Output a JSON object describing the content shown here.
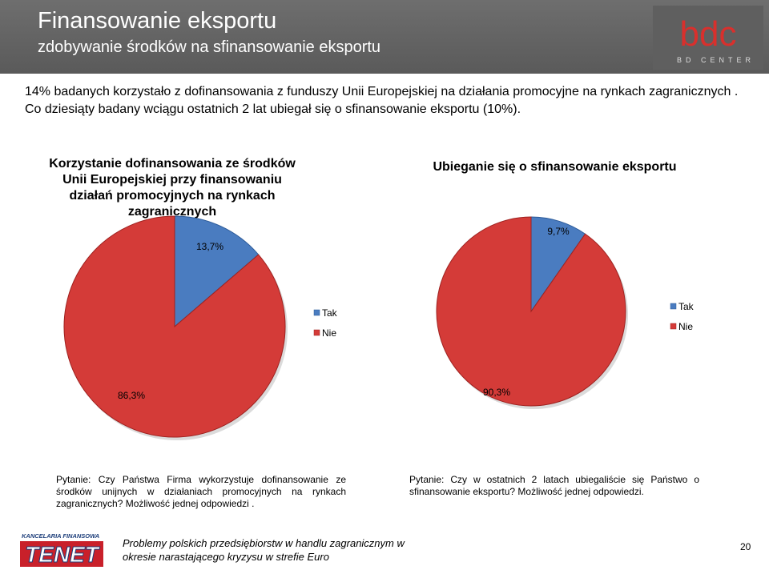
{
  "header": {
    "title": "Finansowanie eksportu",
    "subtitle": "zdobywanie środków na sfinansowanie eksportu",
    "logo_text": "BD CENTER",
    "logo_mark": "bdc"
  },
  "intro": {
    "line1": "14% badanych korzystało z dofinansowania z funduszy Unii Europejskiej na działania promocyjne na rynkach zagranicznych .",
    "line2": "Co dziesiąty badany wciągu ostatnich 2 lat  ubiegał się o sfinansowanie eksportu (10%)."
  },
  "colors": {
    "tak": "#4a7cc0",
    "nie": "#d43b38",
    "header_bg": "#636363"
  },
  "chart_data": [
    {
      "type": "pie",
      "title": "Korzystanie dofinansowania ze środków Unii Europejskiej przy finansowaniu działań promocyjnych na rynkach zagranicznych",
      "categories": [
        "Tak",
        "Nie"
      ],
      "values": [
        13.7,
        86.3
      ],
      "value_labels": [
        "13,7%",
        "86,3%"
      ],
      "legend": "right"
    },
    {
      "type": "pie",
      "title": "Ubieganie się o sfinansowanie eksportu",
      "categories": [
        "Tak",
        "Nie"
      ],
      "values": [
        9.7,
        90.3
      ],
      "value_labels": [
        "9,7%",
        "90,3%"
      ],
      "legend": "right"
    }
  ],
  "questions": {
    "q1": "Pytanie: Czy Państwa Firma wykorzystuje dofinansowanie ze środków unijnych w działaniach promocyjnych na rynkach zagranicznych? Możliwość jednej odpowiedzi .",
    "q2": "Pytanie: Czy w ostatnich 2 latach ubiegaliście się Państwo o sfinansowanie eksportu? Możliwość jednej odpowiedzi."
  },
  "footer": {
    "logo_top": "KANCELARIA FINANSOWA",
    "logo_main": "TENET",
    "text": "Problemy polskich przedsiębiorstw w handlu zagranicznym  w okresie narastającego kryzysu w strefie Euro",
    "page_number": "20"
  }
}
